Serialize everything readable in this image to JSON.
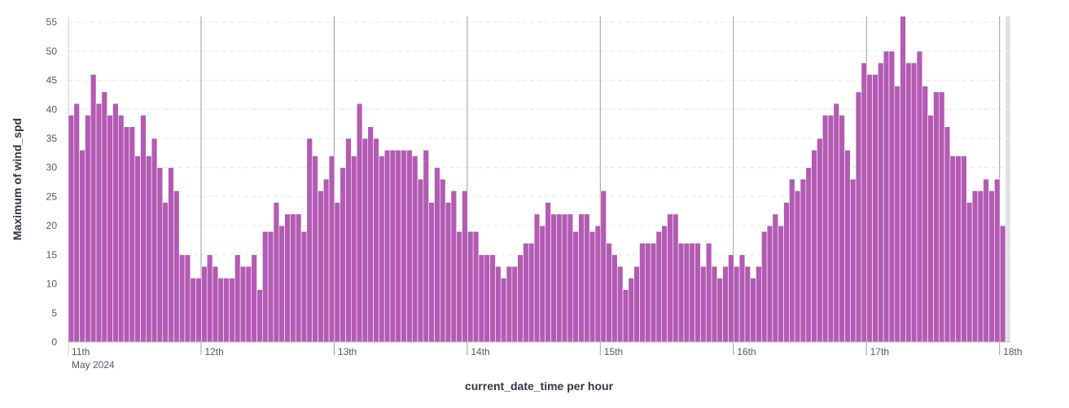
{
  "chart_data": {
    "type": "bar",
    "xlabel": "current_date_time per hour",
    "ylabel": "Maximum of wind_spd",
    "ylim": [
      0,
      56
    ],
    "yticks": [
      "0",
      "5",
      "10",
      "15",
      "20",
      "25",
      "30",
      "35",
      "40",
      "45",
      "50",
      "55"
    ],
    "x_start": "2024-05-11 00:00",
    "x_interval": "1 hour",
    "xticks": [
      {
        "label": "11th",
        "sublabel": "May 2024",
        "hour_index": 0
      },
      {
        "label": "12th",
        "hour_index": 24
      },
      {
        "label": "13th",
        "hour_index": 48
      },
      {
        "label": "14th",
        "hour_index": 72
      },
      {
        "label": "15th",
        "hour_index": 96
      },
      {
        "label": "16th",
        "hour_index": 120
      },
      {
        "label": "17th",
        "hour_index": 144
      },
      {
        "label": "18th",
        "hour_index": 168
      }
    ],
    "grid": true,
    "legend": "none",
    "color": "#b35bb3",
    "values": [
      39,
      41,
      33,
      39,
      46,
      41,
      43,
      39,
      41,
      39,
      37,
      37,
      32,
      39,
      32,
      35,
      30,
      24,
      30,
      26,
      15,
      15,
      11,
      11,
      13,
      15,
      13,
      11,
      11,
      11,
      15,
      13,
      13,
      15,
      9,
      19,
      19,
      24,
      20,
      22,
      22,
      22,
      19,
      35,
      32,
      26,
      28,
      32,
      24,
      30,
      35,
      32,
      41,
      35,
      37,
      35,
      32,
      33,
      33,
      33,
      33,
      33,
      32,
      28,
      33,
      24,
      30,
      28,
      24,
      26,
      19,
      26,
      19,
      19,
      15,
      15,
      15,
      13,
      11,
      13,
      13,
      15,
      17,
      17,
      22,
      20,
      24,
      22,
      22,
      22,
      22,
      19,
      22,
      22,
      19,
      20,
      26,
      17,
      15,
      13,
      9,
      11,
      13,
      17,
      17,
      17,
      19,
      20,
      22,
      22,
      17,
      17,
      17,
      17,
      13,
      17,
      13,
      11,
      13,
      15,
      13,
      15,
      13,
      11,
      13,
      19,
      20,
      22,
      20,
      24,
      28,
      26,
      28,
      30,
      33,
      35,
      39,
      39,
      41,
      39,
      33,
      28,
      43,
      48,
      46,
      46,
      48,
      50,
      50,
      44,
      56,
      48,
      48,
      50,
      44,
      39,
      43,
      43,
      37,
      32,
      32,
      32,
      24,
      26,
      26,
      28,
      26,
      28,
      20
    ]
  }
}
